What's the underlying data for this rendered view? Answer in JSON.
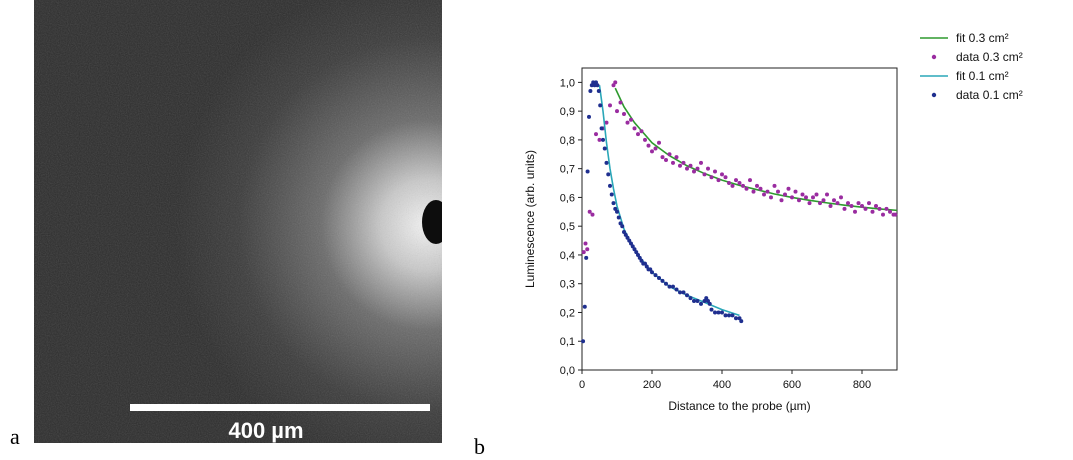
{
  "panels": {
    "a_label": "a",
    "b_label": "b"
  },
  "micrograph": {
    "scale_bar_label": "400 µm",
    "scale_bar_um": 400
  },
  "chart_data": {
    "type": "scatter",
    "title": "",
    "xlabel": "Distance to the probe (µm)",
    "ylabel": "Luminescence (arb. units)",
    "xlim": [
      0,
      900
    ],
    "ylim": [
      0.0,
      1.05
    ],
    "x_ticks": [
      "0",
      "200",
      "400",
      "600",
      "800"
    ],
    "x_tick_values": [
      0,
      200,
      400,
      600,
      800
    ],
    "y_ticks": [
      "0,0",
      "0,1",
      "0,2",
      "0,3",
      "0,4",
      "0,5",
      "0,6",
      "0,7",
      "0,8",
      "0,9",
      "1,0"
    ],
    "y_tick_values": [
      0,
      0.1,
      0.2,
      0.3,
      0.4,
      0.5,
      0.6,
      0.7,
      0.8,
      0.9,
      1.0
    ],
    "grid": false,
    "legend_position": "top-right",
    "series": [
      {
        "name": "fit 0.3 cm²",
        "kind": "line",
        "color": "#2e9a2e",
        "x": [
          95,
          120,
          150,
          200,
          250,
          300,
          350,
          400,
          450,
          500,
          550,
          600,
          650,
          700,
          750,
          800,
          850,
          900
        ],
        "y": [
          0.98,
          0.915,
          0.86,
          0.79,
          0.745,
          0.71,
          0.683,
          0.66,
          0.642,
          0.627,
          0.612,
          0.6,
          0.59,
          0.581,
          0.573,
          0.566,
          0.56,
          0.555
        ]
      },
      {
        "name": "data 0.3 cm²",
        "kind": "points",
        "color": "#9a2ca0",
        "x": [
          5,
          10,
          15,
          22,
          30,
          40,
          50,
          60,
          70,
          80,
          90,
          95,
          100,
          110,
          120,
          130,
          140,
          150,
          160,
          170,
          180,
          190,
          200,
          210,
          220,
          230,
          240,
          250,
          260,
          270,
          280,
          290,
          300,
          310,
          320,
          330,
          340,
          350,
          360,
          370,
          380,
          390,
          400,
          410,
          420,
          430,
          440,
          450,
          460,
          470,
          480,
          490,
          500,
          510,
          520,
          530,
          540,
          550,
          560,
          570,
          580,
          590,
          600,
          610,
          620,
          630,
          640,
          650,
          660,
          670,
          680,
          690,
          700,
          710,
          720,
          730,
          740,
          750,
          760,
          770,
          780,
          790,
          800,
          810,
          820,
          830,
          840,
          850,
          860,
          870,
          880,
          890,
          895
        ],
        "y": [
          0.41,
          0.44,
          0.42,
          0.55,
          0.54,
          0.82,
          0.8,
          0.84,
          0.86,
          0.92,
          0.99,
          1.0,
          0.9,
          0.93,
          0.89,
          0.86,
          0.87,
          0.84,
          0.82,
          0.83,
          0.8,
          0.78,
          0.76,
          0.77,
          0.79,
          0.74,
          0.73,
          0.75,
          0.72,
          0.74,
          0.71,
          0.72,
          0.7,
          0.71,
          0.69,
          0.7,
          0.72,
          0.68,
          0.7,
          0.67,
          0.69,
          0.66,
          0.68,
          0.67,
          0.65,
          0.64,
          0.66,
          0.65,
          0.64,
          0.63,
          0.66,
          0.62,
          0.64,
          0.63,
          0.61,
          0.62,
          0.6,
          0.64,
          0.62,
          0.59,
          0.61,
          0.63,
          0.6,
          0.62,
          0.59,
          0.61,
          0.6,
          0.58,
          0.6,
          0.61,
          0.58,
          0.59,
          0.61,
          0.57,
          0.59,
          0.58,
          0.6,
          0.56,
          0.58,
          0.57,
          0.55,
          0.58,
          0.57,
          0.56,
          0.58,
          0.55,
          0.57,
          0.56,
          0.54,
          0.56,
          0.55,
          0.54,
          0.54
        ]
      },
      {
        "name": "fit 0.1 cm²",
        "kind": "line",
        "color": "#2aa7b8",
        "x": [
          50,
          60,
          70,
          80,
          90,
          100,
          120,
          140,
          160,
          180,
          200,
          250,
          300,
          350,
          400,
          450
        ],
        "y": [
          0.99,
          0.9,
          0.79,
          0.7,
          0.63,
          0.57,
          0.49,
          0.44,
          0.4,
          0.37,
          0.34,
          0.29,
          0.26,
          0.235,
          0.21,
          0.19
        ]
      },
      {
        "name": "data 0.1 cm²",
        "kind": "points",
        "color": "#1f2f8f",
        "x": [
          3,
          8,
          12,
          16,
          20,
          24,
          28,
          32,
          36,
          40,
          44,
          48,
          52,
          56,
          60,
          65,
          70,
          75,
          80,
          85,
          90,
          95,
          100,
          105,
          110,
          115,
          120,
          125,
          130,
          135,
          140,
          145,
          150,
          155,
          160,
          165,
          170,
          175,
          180,
          185,
          190,
          195,
          200,
          210,
          220,
          230,
          240,
          250,
          260,
          270,
          280,
          290,
          300,
          310,
          320,
          330,
          340,
          350,
          355,
          360,
          365,
          370,
          380,
          390,
          400,
          410,
          420,
          430,
          440,
          450,
          455
        ],
        "y": [
          0.1,
          0.22,
          0.39,
          0.69,
          0.88,
          0.97,
          0.99,
          1.0,
          0.99,
          1.0,
          0.99,
          0.97,
          0.92,
          0.84,
          0.8,
          0.77,
          0.72,
          0.68,
          0.64,
          0.61,
          0.58,
          0.56,
          0.55,
          0.53,
          0.51,
          0.5,
          0.48,
          0.47,
          0.46,
          0.45,
          0.44,
          0.43,
          0.42,
          0.41,
          0.4,
          0.39,
          0.38,
          0.37,
          0.37,
          0.36,
          0.35,
          0.35,
          0.34,
          0.33,
          0.32,
          0.31,
          0.3,
          0.29,
          0.29,
          0.28,
          0.27,
          0.27,
          0.26,
          0.25,
          0.24,
          0.24,
          0.23,
          0.24,
          0.25,
          0.24,
          0.23,
          0.21,
          0.2,
          0.2,
          0.2,
          0.19,
          0.19,
          0.19,
          0.18,
          0.18,
          0.17
        ]
      }
    ]
  }
}
